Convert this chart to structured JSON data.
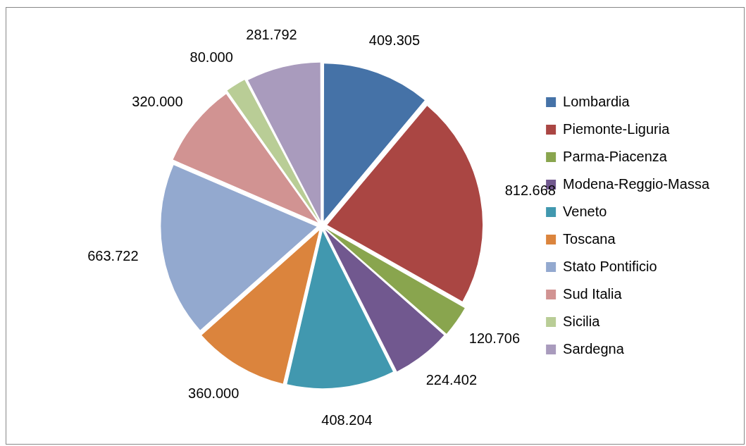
{
  "chart_data": {
    "type": "pie",
    "categories": [
      "Lombardia",
      "Piemonte-Liguria",
      "Parma-Piacenza",
      "Modena-Reggio-Massa",
      "Veneto",
      "Toscana",
      "Stato Pontificio",
      "Sud Italia",
      "Sicilia",
      "Sardegna"
    ],
    "values": [
      409305,
      812668,
      120706,
      224402,
      408204,
      360000,
      663722,
      320000,
      80000,
      281792
    ],
    "value_labels": [
      "409.305",
      "812.668",
      "120.706",
      "224.402",
      "408.204",
      "360.000",
      "663.722",
      "320.000",
      "80.000",
      "281.792"
    ],
    "colors": [
      "#4572a7",
      "#aa4643",
      "#89a54e",
      "#71588f",
      "#4198af",
      "#db843d",
      "#93a9cf",
      "#d19392",
      "#b9cd96",
      "#a99bbd"
    ],
    "legend": "right"
  }
}
